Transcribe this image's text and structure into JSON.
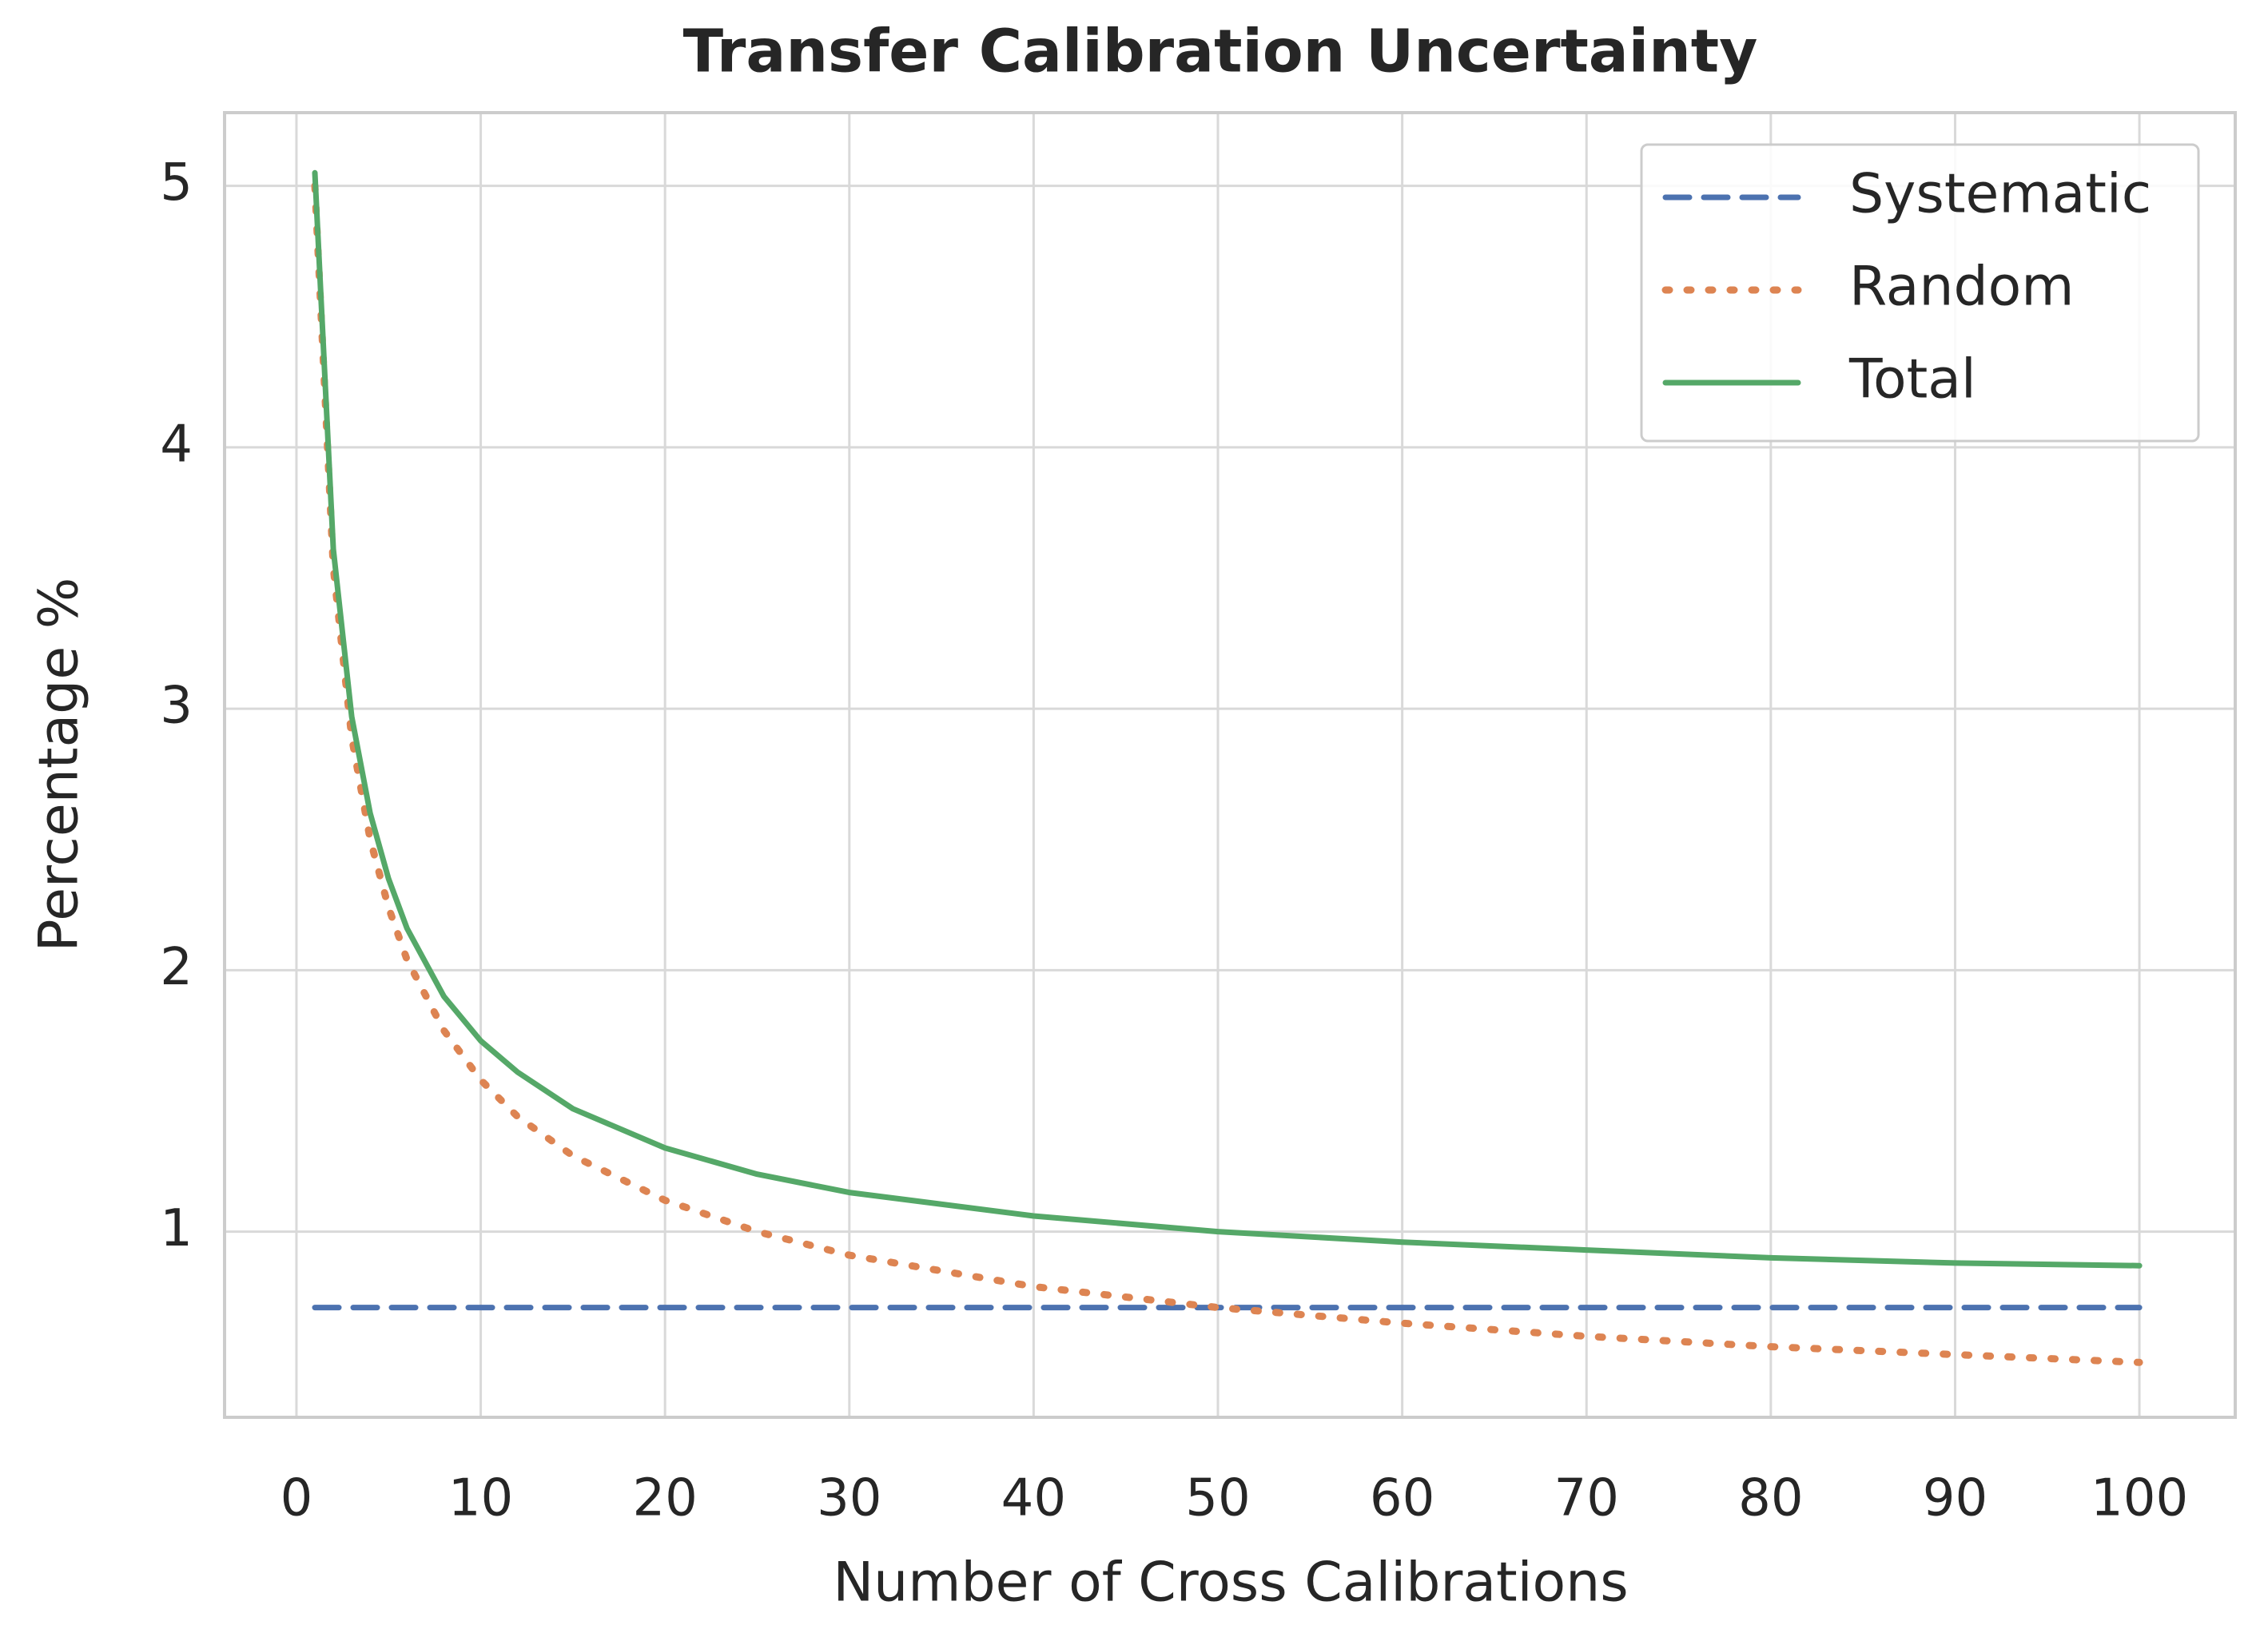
{
  "chart_data": {
    "type": "line",
    "title": "Transfer Calibration Uncertainty",
    "x_label": "Number of Cross Calibrations",
    "y_label": "Percentage %",
    "x": [
      1,
      2,
      3,
      4,
      5,
      6,
      8,
      10,
      12,
      15,
      20,
      25,
      30,
      40,
      50,
      60,
      70,
      80,
      90,
      100
    ],
    "series": [
      {
        "name": "Systematic",
        "color": "#4c72b0",
        "dash": "dashed",
        "values": [
          0.71,
          0.71,
          0.71,
          0.71,
          0.71,
          0.71,
          0.71,
          0.71,
          0.71,
          0.71,
          0.71,
          0.71,
          0.71,
          0.71,
          0.71,
          0.71,
          0.71,
          0.71,
          0.71,
          0.71
        ]
      },
      {
        "name": "Random",
        "color": "#dd8452",
        "dash": "dotted",
        "values": [
          5.0,
          3.54,
          2.89,
          2.5,
          2.24,
          2.04,
          1.77,
          1.58,
          1.44,
          1.29,
          1.12,
          1.0,
          0.91,
          0.79,
          0.71,
          0.65,
          0.6,
          0.56,
          0.53,
          0.5
        ]
      },
      {
        "name": "Total",
        "color": "#55a868",
        "dash": "solid",
        "values": [
          5.05,
          3.61,
          2.97,
          2.6,
          2.35,
          2.16,
          1.9,
          1.73,
          1.61,
          1.47,
          1.32,
          1.22,
          1.15,
          1.06,
          1.0,
          0.96,
          0.93,
          0.9,
          0.88,
          0.87
        ]
      }
    ],
    "xlim": [
      -3.9,
      105.2
    ],
    "ylim": [
      0.29,
      5.28
    ],
    "xticks": [
      0,
      10,
      20,
      30,
      40,
      50,
      60,
      70,
      80,
      90,
      100
    ],
    "yticks": [
      1,
      2,
      3,
      4,
      5
    ],
    "grid": true,
    "legend": "upper right"
  }
}
